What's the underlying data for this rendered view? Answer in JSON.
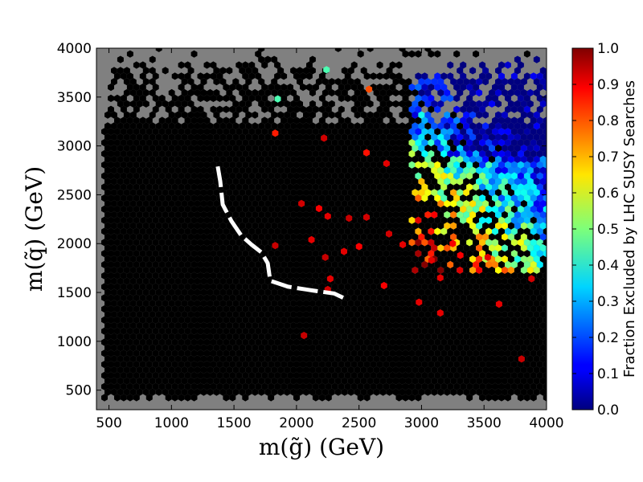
{
  "chart_data": {
    "type": "heatmap",
    "subtype": "hexbin",
    "title": "",
    "xlabel": "m(g̃) (GeV)",
    "ylabel": "m(q̃) (GeV)",
    "xlim": [
      400,
      4000
    ],
    "ylim": [
      300,
      4000
    ],
    "xticks": [
      500,
      1000,
      1500,
      2000,
      2500,
      3000,
      3500,
      4000
    ],
    "yticks": [
      500,
      1000,
      1500,
      2000,
      2500,
      3000,
      3500,
      4000
    ],
    "background_color": "#808080",
    "colorbar": {
      "label": "Fraction Excluded by LHC SUSY Searches",
      "colormap": "jet",
      "range": [
        0.0,
        1.0
      ],
      "ticks": [
        "0.0",
        "0.1",
        "0.2",
        "0.3",
        "0.4",
        "0.5",
        "0.6",
        "0.7",
        "0.8",
        "0.9",
        "1.0"
      ]
    },
    "excluded_fraction_region": {
      "description": "Region of the plane where most model points are fully excluded (fraction = 1.0, shown black)",
      "value": 1.0
    },
    "partial_points": [
      {
        "x": 2040,
        "y": 2410,
        "v": 0.92
      },
      {
        "x": 2180,
        "y": 2360,
        "v": 0.88
      },
      {
        "x": 2250,
        "y": 2280,
        "v": 0.9
      },
      {
        "x": 2420,
        "y": 2260,
        "v": 0.93
      },
      {
        "x": 2560,
        "y": 2270,
        "v": 0.92
      },
      {
        "x": 2120,
        "y": 2040,
        "v": 0.9
      },
      {
        "x": 2230,
        "y": 1860,
        "v": 0.93
      },
      {
        "x": 2380,
        "y": 1920,
        "v": 0.9
      },
      {
        "x": 2500,
        "y": 1970,
        "v": 0.88
      },
      {
        "x": 2740,
        "y": 2100,
        "v": 0.92
      },
      {
        "x": 2850,
        "y": 1990,
        "v": 0.9
      },
      {
        "x": 1830,
        "y": 1980,
        "v": 0.93
      },
      {
        "x": 2270,
        "y": 1640,
        "v": 0.9
      },
      {
        "x": 2250,
        "y": 1530,
        "v": 0.92
      },
      {
        "x": 2700,
        "y": 1570,
        "v": 0.88
      },
      {
        "x": 2980,
        "y": 1400,
        "v": 0.9
      },
      {
        "x": 3150,
        "y": 1290,
        "v": 0.9
      },
      {
        "x": 2060,
        "y": 1060,
        "v": 0.93
      },
      {
        "x": 3800,
        "y": 820,
        "v": 0.93
      },
      {
        "x": 3620,
        "y": 1380,
        "v": 0.9
      },
      {
        "x": 3880,
        "y": 1640,
        "v": 0.92
      },
      {
        "x": 3150,
        "y": 1650,
        "v": 0.9
      },
      {
        "x": 3310,
        "y": 1880,
        "v": 0.88
      },
      {
        "x": 3530,
        "y": 1860,
        "v": 0.9
      },
      {
        "x": 1850,
        "y": 3480,
        "v": 0.45
      },
      {
        "x": 2240,
        "y": 3780,
        "v": 0.45
      },
      {
        "x": 1830,
        "y": 3130,
        "v": 0.85
      },
      {
        "x": 2220,
        "y": 3080,
        "v": 0.92
      },
      {
        "x": 2560,
        "y": 2930,
        "v": 0.86
      },
      {
        "x": 2580,
        "y": 3580,
        "v": 0.8
      },
      {
        "x": 2720,
        "y": 2820,
        "v": 0.9
      },
      {
        "x": 3080,
        "y": 1830,
        "v": 0.9
      },
      {
        "x": 3250,
        "y": 2000,
        "v": 0.88
      }
    ],
    "mixed_region": {
      "description": "Upper-right corner with fractions ranging from 0.0 (blue) to 1.0 (red)",
      "x_range": [
        2900,
        4000
      ],
      "y_range": [
        1700,
        3900
      ]
    },
    "boundary_line": {
      "style": "white dashed",
      "points": [
        {
          "x": 1370,
          "y": 2790
        },
        {
          "x": 1390,
          "y": 2640
        },
        {
          "x": 1410,
          "y": 2400
        },
        {
          "x": 1480,
          "y": 2230
        },
        {
          "x": 1560,
          "y": 2080
        },
        {
          "x": 1640,
          "y": 1990
        },
        {
          "x": 1720,
          "y": 1910
        },
        {
          "x": 1770,
          "y": 1800
        },
        {
          "x": 1790,
          "y": 1620
        },
        {
          "x": 1930,
          "y": 1560
        },
        {
          "x": 2130,
          "y": 1520
        },
        {
          "x": 2300,
          "y": 1490
        },
        {
          "x": 2400,
          "y": 1430
        }
      ]
    }
  },
  "colors": {
    "background": "#808080",
    "excluded": "#000000",
    "line": "#ffffff"
  }
}
